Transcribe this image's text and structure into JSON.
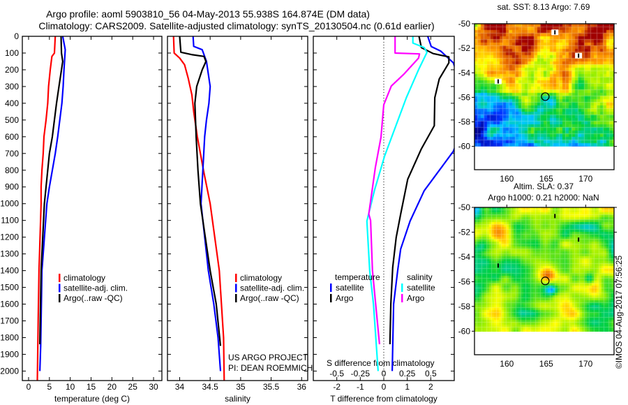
{
  "title": {
    "line1": "Argo profile: aoml 5903810_56 04-May-2013 55.938S 164.874E (DM data)",
    "line2": "Climatology: CARS2009. Satellite-adjusted climatology: synTS_20130504.nc (0.61d earlier)"
  },
  "credit": {
    "project": "US ARGO PROJECT",
    "pi": "PI: DEAN ROEMMICH",
    "imos": "©IMOS 04-Aug-2017 07:56:25"
  },
  "colors": {
    "climatology": "#ff0000",
    "satellite": "#0000ff",
    "argo": "#000000",
    "s_satellite": "#00ffff",
    "s_argo": "#ff00ff"
  },
  "chart_data": [
    {
      "type": "line",
      "id": "temperature",
      "xlabel": "temperature (deg C)",
      "ylabel": "",
      "xlim": [
        -1.5,
        32
      ],
      "ylim": [
        2058,
        0
      ],
      "xticks": [
        "0",
        "5",
        "10",
        "15",
        "20",
        "25",
        "30"
      ],
      "xtick_values": [
        0,
        5,
        10,
        15,
        20,
        25,
        30
      ],
      "yticks": [
        "0",
        "100",
        "200",
        "300",
        "400",
        "500",
        "600",
        "700",
        "800",
        "900",
        "1000",
        "1100",
        "1200",
        "1300",
        "1400",
        "1500",
        "1600",
        "1700",
        "1800",
        "1900",
        "2000"
      ],
      "legend": [
        "climatology",
        "satellite-adj. clim.",
        "Argo(..raw -QC)"
      ],
      "series": [
        {
          "name": "climatology",
          "color": "#ff0000",
          "depth": [
            0,
            100,
            120,
            200,
            300,
            400,
            500,
            600,
            700,
            800,
            900,
            1000,
            1400,
            1700,
            2058
          ],
          "values": [
            6.4,
            6.2,
            5.6,
            5.2,
            4.8,
            4.6,
            4.2,
            3.7,
            3.5,
            3.2,
            3.0,
            3.0,
            2.5,
            2.3,
            2.1
          ]
        },
        {
          "name": "satellite-adj. clim.",
          "color": "#0000ff",
          "depth": [
            0,
            80,
            200,
            300,
            400,
            500,
            600,
            700,
            800,
            900,
            1000,
            1400,
            1850,
            2000
          ],
          "values": [
            8.2,
            8.8,
            8.5,
            8.3,
            8.0,
            7.5,
            7.0,
            6.4,
            5.7,
            5.0,
            4.4,
            3.2,
            2.9,
            2.7
          ]
        },
        {
          "name": "Argo(..raw -QC)",
          "color": "#000000",
          "depth": [
            0,
            100,
            150,
            200,
            300,
            400,
            500,
            600,
            700,
            800,
            900,
            1000,
            1400,
            1840
          ],
          "values": [
            7.8,
            7.9,
            8.2,
            7.9,
            7.3,
            6.7,
            6.2,
            5.7,
            5.0,
            4.6,
            4.2,
            3.8,
            3.0,
            2.7
          ]
        }
      ]
    },
    {
      "type": "line",
      "id": "salinity",
      "xlabel": "salinity",
      "xlim": [
        33.8,
        36.1
      ],
      "ylim": [
        2058,
        0
      ],
      "xticks": [
        "34",
        "34.5",
        "35",
        "35.5",
        "36"
      ],
      "xtick_values": [
        34,
        34.5,
        35,
        35.5,
        36
      ],
      "legend": [
        "climatology",
        "satellite-adj. clim.",
        "Argo(..raw -QC)"
      ],
      "series": [
        {
          "name": "climatology",
          "color": "#ff0000",
          "depth": [
            0,
            100,
            130,
            170,
            250,
            350,
            450,
            600,
            800,
            1000,
            1400,
            1800,
            2058
          ],
          "values": [
            33.9,
            33.91,
            34.0,
            34.08,
            34.14,
            34.2,
            34.23,
            34.29,
            34.39,
            34.5,
            34.65,
            34.72,
            34.73
          ]
        },
        {
          "name": "satellite-adj. clim.",
          "color": "#0000ff",
          "depth": [
            0,
            60,
            80,
            150,
            300,
            400,
            500,
            600,
            800,
            1000,
            1400,
            1600,
            1800,
            2000
          ],
          "values": [
            34.22,
            34.23,
            34.37,
            34.44,
            34.5,
            34.48,
            34.44,
            34.41,
            34.38,
            34.35,
            34.47,
            34.56,
            34.63,
            34.67
          ]
        },
        {
          "name": "Argo(..raw -QC)",
          "color": "#000000",
          "depth": [
            0,
            95,
            110,
            120,
            150,
            200,
            300,
            400,
            500,
            600,
            800,
            1000,
            1400,
            1600,
            1850
          ],
          "values": [
            34.0,
            34.02,
            34.21,
            34.4,
            34.43,
            34.37,
            34.28,
            34.25,
            34.26,
            34.27,
            34.3,
            34.34,
            34.5,
            34.6,
            34.67
          ]
        }
      ]
    },
    {
      "type": "line",
      "id": "difference",
      "xlabel": "T difference from climatology",
      "s_xlabel": "S difference from climatology",
      "xlim": [
        -3,
        3
      ],
      "s_xlim": [
        -0.75,
        0.75
      ],
      "ylim": [
        2058,
        0
      ],
      "xticks": [
        "-2",
        "-1",
        "0",
        "1",
        "2"
      ],
      "xtick_values": [
        -2,
        -1,
        0,
        1,
        2
      ],
      "s_xticks": [
        "-0.5",
        "-0.25",
        "0",
        "0.25",
        "0.5"
      ],
      "s_xtick_values": [
        -0.5,
        -0.25,
        0,
        0.25,
        0.5
      ],
      "legend": {
        "temperature_heading": "temperature",
        "salinity_heading": "salinity",
        "t_satellite": "satellite",
        "t_argo": "Argo",
        "s_satellite": "satellite",
        "s_argo": "Argo"
      },
      "series": [
        {
          "name": "T satellite",
          "axis": "T",
          "color": "#0000ff",
          "depth": [
            0,
            61,
            88,
            158,
            300,
            450,
            600,
            687,
            923,
            1104,
            1271,
            1400,
            1600,
            2000
          ],
          "values": [
            1.87,
            2.02,
            2.42,
            2.96,
            3.3,
            3.4,
            3.2,
            2.96,
            1.72,
            1.12,
            0.72,
            0.59,
            0.42,
            0.36
          ]
        },
        {
          "name": "T Argo",
          "axis": "T",
          "color": "#000000",
          "depth": [
            0,
            67,
            103,
            123,
            158,
            255,
            367,
            534,
            672,
            854,
            1062,
            1201,
            1381,
            1600,
            1840
          ],
          "values": [
            1.5,
            1.6,
            2.1,
            2.77,
            2.77,
            2.36,
            2.17,
            2.15,
            1.6,
            1.02,
            0.72,
            0.53,
            0.38,
            0.3,
            0.26
          ]
        },
        {
          "name": "S satellite",
          "axis": "S",
          "color": "#00ffff",
          "depth": [
            0,
            40,
            67,
            96,
            200,
            367,
            714,
            923,
            1104,
            1400,
            1600,
            2000
          ],
          "values": [
            0.31,
            0.31,
            0.43,
            0.46,
            0.37,
            0.24,
            0.01,
            -0.1,
            -0.18,
            -0.15,
            -0.11,
            -0.06
          ]
        },
        {
          "name": "S Argo",
          "axis": "S",
          "color": "#ff00ff",
          "depth": [
            0,
            100,
            105,
            130,
            228,
            297,
            409,
            603,
            784,
            1062,
            1100,
            1400,
            1840
          ],
          "values": [
            0.12,
            0.12,
            0.38,
            0.37,
            0.21,
            0.08,
            0.0,
            -0.03,
            -0.09,
            -0.16,
            -0.14,
            -0.12,
            -0.045
          ]
        }
      ]
    },
    {
      "type": "heatmap",
      "id": "sst-map",
      "title": "sat. SST: 8.13 Argo: 7.69",
      "lon_range": [
        155.9,
        173.6
      ],
      "lat_range": [
        -61.9,
        -50
      ],
      "xticks": [
        "160",
        "165",
        "170"
      ],
      "xtick_values": [
        160,
        165,
        170
      ],
      "yticks": [
        "-50",
        "-52",
        "-54",
        "-56",
        "-58",
        "-60"
      ],
      "ytick_values": [
        -50,
        -52,
        -54,
        -56,
        -58,
        -60
      ],
      "profile_location": [
        164.874,
        -55.938
      ],
      "other_floats": [
        [
          166.1,
          -50.7
        ],
        [
          169.1,
          -52.6
        ],
        [
          158.9,
          -54.7
        ]
      ]
    },
    {
      "type": "heatmap",
      "id": "sla-map",
      "title": "Altim. SLA: 0.37",
      "subtitle": "Argo h1000: 0.21 h2000: NaN",
      "lon_range": [
        155.9,
        173.6
      ],
      "lat_range": [
        -61.9,
        -50
      ],
      "xticks": [
        "160",
        "165",
        "170"
      ],
      "xtick_values": [
        160,
        165,
        170
      ],
      "yticks": [
        "-50",
        "-52",
        "-54",
        "-56",
        "-58",
        "-60"
      ],
      "ytick_values": [
        -50,
        -52,
        -54,
        -56,
        -58,
        -60
      ],
      "profile_location": [
        164.874,
        -55.938
      ],
      "other_floats": [
        [
          166.1,
          -50.7
        ],
        [
          169.1,
          -52.6
        ],
        [
          158.9,
          -54.7
        ]
      ]
    }
  ]
}
